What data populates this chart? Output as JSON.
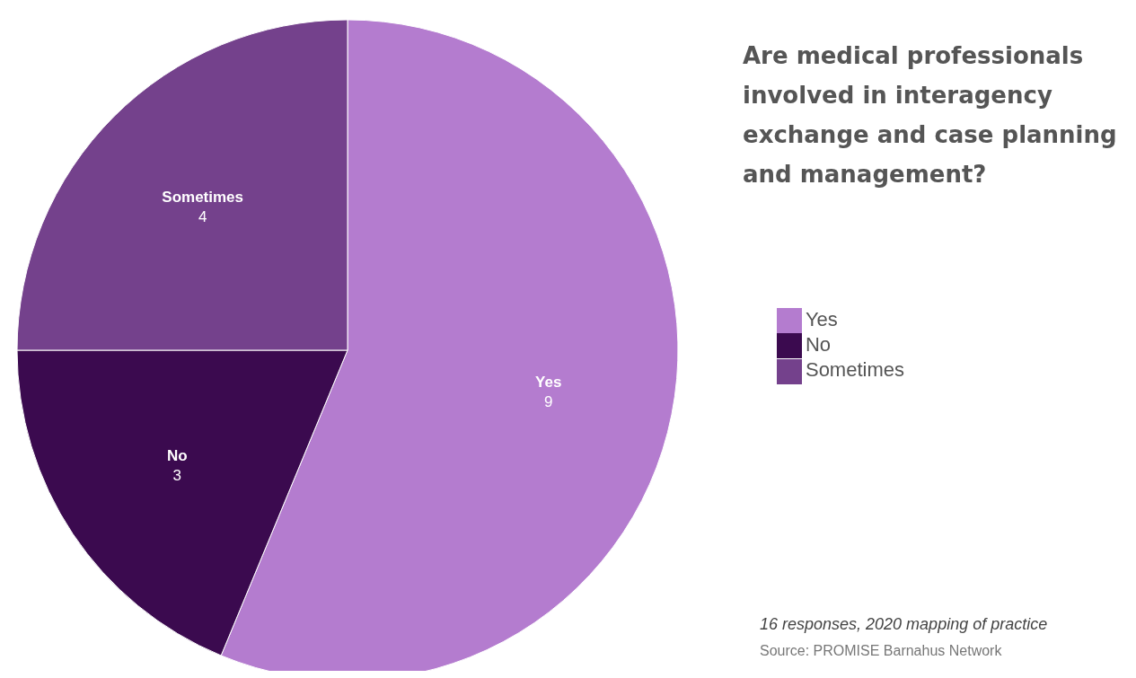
{
  "chart_data": {
    "type": "pie",
    "title": "Are medical professionals involved in interagency exchange and case planning and management?",
    "categories": [
      "Yes",
      "No",
      "Sometimes"
    ],
    "values": [
      9,
      3,
      4
    ],
    "colors": [
      "#b47ccf",
      "#3b0a4f",
      "#74418c"
    ],
    "data_labels": true,
    "legend": "right",
    "annotations": [
      "16 responses, 2020 mapping of practice",
      "Source: PROMISE Barnahus Network"
    ]
  }
}
